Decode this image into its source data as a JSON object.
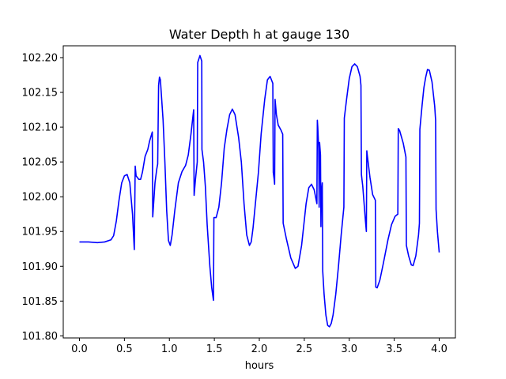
{
  "chart_data": {
    "type": "line",
    "title": "Water Depth h at gauge 130",
    "xlabel": "hours",
    "ylabel": "",
    "xlim": [
      -0.18,
      4.18
    ],
    "ylim": [
      101.797,
      102.217
    ],
    "x_ticks": [
      0.0,
      0.5,
      1.0,
      1.5,
      2.0,
      2.5,
      3.0,
      3.5,
      4.0
    ],
    "x_tick_labels": [
      "0.0",
      "0.5",
      "1.0",
      "1.5",
      "2.0",
      "2.5",
      "3.0",
      "3.5",
      "4.0"
    ],
    "y_ticks": [
      101.8,
      101.85,
      101.9,
      101.95,
      102.0,
      102.05,
      102.1,
      102.15,
      102.2
    ],
    "y_tick_labels": [
      "101.80",
      "101.85",
      "101.90",
      "101.95",
      "102.00",
      "102.05",
      "102.10",
      "102.15",
      "102.20"
    ],
    "grid": false,
    "legend": "none",
    "series": [
      {
        "color": "#0000ff",
        "points": [
          [
            0.0,
            101.935
          ],
          [
            0.1,
            101.935
          ],
          [
            0.2,
            101.934
          ],
          [
            0.28,
            101.935
          ],
          [
            0.35,
            101.938
          ],
          [
            0.38,
            101.944
          ],
          [
            0.41,
            101.965
          ],
          [
            0.44,
            101.995
          ],
          [
            0.47,
            102.02
          ],
          [
            0.5,
            102.03
          ],
          [
            0.53,
            102.032
          ],
          [
            0.56,
            102.02
          ],
          [
            0.59,
            101.975
          ],
          [
            0.61,
            101.924
          ],
          [
            0.62,
            102.044
          ],
          [
            0.63,
            102.03
          ],
          [
            0.66,
            102.025
          ],
          [
            0.68,
            102.025
          ],
          [
            0.7,
            102.035
          ],
          [
            0.73,
            102.058
          ],
          [
            0.76,
            102.068
          ],
          [
            0.78,
            102.08
          ],
          [
            0.81,
            102.093
          ],
          [
            0.815,
            101.971
          ],
          [
            0.84,
            102.02
          ],
          [
            0.86,
            102.04
          ],
          [
            0.87,
            102.047
          ],
          [
            0.88,
            102.16
          ],
          [
            0.89,
            102.172
          ],
          [
            0.9,
            102.168
          ],
          [
            0.93,
            102.11
          ],
          [
            0.95,
            102.05
          ],
          [
            0.97,
            101.98
          ],
          [
            0.99,
            101.937
          ],
          [
            1.01,
            101.93
          ],
          [
            1.03,
            101.945
          ],
          [
            1.06,
            101.98
          ],
          [
            1.1,
            102.02
          ],
          [
            1.14,
            102.036
          ],
          [
            1.18,
            102.045
          ],
          [
            1.21,
            102.06
          ],
          [
            1.24,
            102.09
          ],
          [
            1.27,
            102.125
          ],
          [
            1.275,
            102.002
          ],
          [
            1.29,
            102.025
          ],
          [
            1.31,
            102.05
          ],
          [
            1.315,
            102.193
          ],
          [
            1.34,
            102.203
          ],
          [
            1.36,
            102.195
          ],
          [
            1.362,
            102.068
          ],
          [
            1.38,
            102.05
          ],
          [
            1.4,
            102.015
          ],
          [
            1.42,
            101.96
          ],
          [
            1.45,
            101.9
          ],
          [
            1.47,
            101.87
          ],
          [
            1.49,
            101.851
          ],
          [
            1.495,
            101.97
          ],
          [
            1.52,
            101.97
          ],
          [
            1.55,
            101.985
          ],
          [
            1.58,
            102.02
          ],
          [
            1.61,
            102.07
          ],
          [
            1.64,
            102.097
          ],
          [
            1.67,
            102.118
          ],
          [
            1.7,
            102.126
          ],
          [
            1.73,
            102.118
          ],
          [
            1.77,
            102.085
          ],
          [
            1.8,
            102.05
          ],
          [
            1.83,
            101.99
          ],
          [
            1.86,
            101.945
          ],
          [
            1.89,
            101.93
          ],
          [
            1.91,
            101.935
          ],
          [
            1.93,
            101.955
          ],
          [
            1.96,
            101.995
          ],
          [
            1.99,
            102.035
          ],
          [
            2.02,
            102.09
          ],
          [
            2.06,
            102.14
          ],
          [
            2.09,
            102.168
          ],
          [
            2.12,
            102.173
          ],
          [
            2.15,
            102.163
          ],
          [
            2.155,
            102.035
          ],
          [
            2.165,
            102.025
          ],
          [
            2.17,
            102.018
          ],
          [
            2.175,
            102.14
          ],
          [
            2.19,
            102.118
          ],
          [
            2.21,
            102.103
          ],
          [
            2.24,
            102.096
          ],
          [
            2.26,
            102.09
          ],
          [
            2.265,
            101.962
          ],
          [
            2.3,
            101.94
          ],
          [
            2.35,
            101.912
          ],
          [
            2.4,
            101.897
          ],
          [
            2.43,
            101.9
          ],
          [
            2.47,
            101.93
          ],
          [
            2.52,
            101.99
          ],
          [
            2.55,
            102.013
          ],
          [
            2.58,
            102.018
          ],
          [
            2.61,
            102.01
          ],
          [
            2.64,
            101.99
          ],
          [
            2.645,
            102.11
          ],
          [
            2.65,
            102.1
          ],
          [
            2.66,
            102.07
          ],
          [
            2.665,
            101.985
          ],
          [
            2.67,
            102.078
          ],
          [
            2.68,
            102.06
          ],
          [
            2.685,
            101.957
          ],
          [
            2.69,
            102.005
          ],
          [
            2.7,
            102.02
          ],
          [
            2.705,
            101.893
          ],
          [
            2.72,
            101.86
          ],
          [
            2.74,
            101.83
          ],
          [
            2.76,
            101.815
          ],
          [
            2.78,
            101.813
          ],
          [
            2.8,
            101.818
          ],
          [
            2.82,
            101.83
          ],
          [
            2.85,
            101.86
          ],
          [
            2.88,
            101.9
          ],
          [
            2.91,
            101.945
          ],
          [
            2.94,
            101.985
          ],
          [
            2.945,
            102.113
          ],
          [
            2.97,
            102.14
          ],
          [
            3.0,
            102.17
          ],
          [
            3.03,
            102.187
          ],
          [
            3.06,
            102.191
          ],
          [
            3.09,
            102.187
          ],
          [
            3.12,
            102.173
          ],
          [
            3.13,
            102.16
          ],
          [
            3.135,
            102.032
          ],
          [
            3.15,
            102.015
          ],
          [
            3.18,
            101.965
          ],
          [
            3.19,
            101.95
          ],
          [
            3.195,
            102.066
          ],
          [
            3.2,
            102.06
          ],
          [
            3.23,
            102.028
          ],
          [
            3.26,
            102.003
          ],
          [
            3.29,
            101.995
          ],
          [
            3.295,
            101.87
          ],
          [
            3.31,
            101.869
          ],
          [
            3.34,
            101.88
          ],
          [
            3.38,
            101.905
          ],
          [
            3.43,
            101.938
          ],
          [
            3.47,
            101.96
          ],
          [
            3.51,
            101.972
          ],
          [
            3.54,
            101.975
          ],
          [
            3.545,
            102.098
          ],
          [
            3.56,
            102.095
          ],
          [
            3.6,
            102.077
          ],
          [
            3.63,
            102.057
          ],
          [
            3.635,
            101.93
          ],
          [
            3.66,
            101.915
          ],
          [
            3.69,
            101.902
          ],
          [
            3.71,
            101.901
          ],
          [
            3.74,
            101.915
          ],
          [
            3.77,
            101.945
          ],
          [
            3.78,
            101.962
          ],
          [
            3.785,
            102.097
          ],
          [
            3.81,
            102.132
          ],
          [
            3.83,
            102.157
          ],
          [
            3.85,
            102.172
          ],
          [
            3.87,
            102.183
          ],
          [
            3.89,
            102.182
          ],
          [
            3.92,
            102.165
          ],
          [
            3.95,
            102.13
          ],
          [
            3.96,
            102.11
          ],
          [
            3.965,
            101.982
          ],
          [
            3.98,
            101.95
          ],
          [
            4.0,
            101.92
          ]
        ]
      }
    ]
  }
}
